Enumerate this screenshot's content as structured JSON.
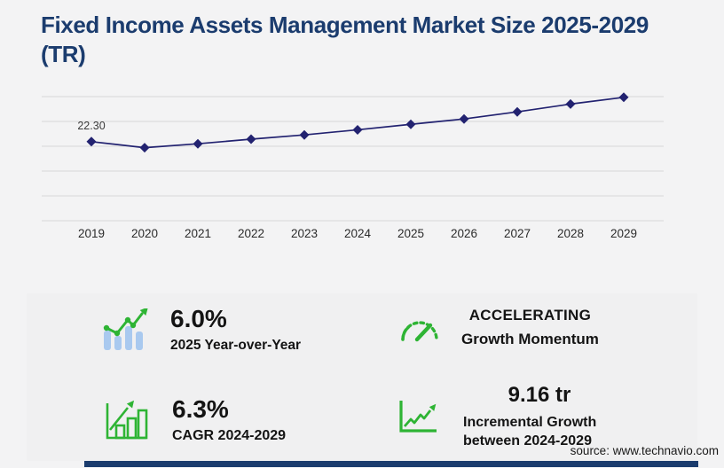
{
  "title": {
    "full": "Fixed Income Assets Management Market Size 2025-2029 (TR)",
    "line1": "Fixed Income Assets Management Market Size 2025-2029",
    "line2": "(TR)"
  },
  "chart_data": {
    "type": "line",
    "title": "Fixed Income Assets Management Market Size 2025-2029 (TR)",
    "x": [
      "2019",
      "2020",
      "2021",
      "2022",
      "2023",
      "2024",
      "2025",
      "2026",
      "2027",
      "2028",
      "2029"
    ],
    "values": [
      22.3,
      20.6,
      21.7,
      23.0,
      24.2,
      25.64,
      27.18,
      28.7,
      30.7,
      32.9,
      34.8
    ],
    "unit": "tr",
    "first_point_label": "22.30",
    "xlabel": "",
    "ylabel": "",
    "ylim": [
      0,
      35
    ],
    "gridline_count": 6,
    "grid": true,
    "legend": false,
    "marker": "diamond"
  },
  "stats": {
    "yoy": {
      "icon": "bar-chart-trend-icon",
      "value": "6.0%",
      "label": "2025 Year-over-Year"
    },
    "momentum": {
      "icon": "gauge-icon",
      "value": "ACCELERATING",
      "label": "Growth Momentum"
    },
    "cagr": {
      "icon": "bar-growth-icon",
      "value": "6.3%",
      "label": "CAGR 2024-2029"
    },
    "incremental": {
      "icon": "line-chart-growth-icon",
      "value": "9.16 tr",
      "label_line1": "Incremental Growth",
      "label_line2": "between 2024-2029"
    }
  },
  "source": "source: www.technavio.com",
  "colors": {
    "title": "#1b3c6e",
    "line": "#222270",
    "grid": "#d7d7d9",
    "axis_label": "#2b2b2b",
    "point_label": "#3a3a3a",
    "green": "#2eb434",
    "light_blue": "#a9c9ef",
    "page_bg": "#f3f3f4",
    "panel_bg": "#f0f0f1",
    "accent_bar": "#1b3c6e"
  }
}
